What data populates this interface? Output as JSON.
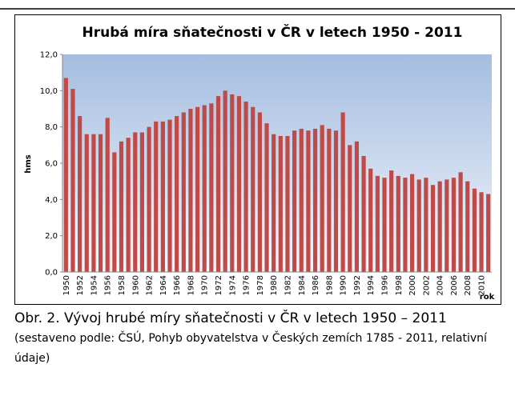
{
  "chart_data": {
    "type": "bar",
    "title": "Hrubá míra sňatečnosti v ČR v letech 1950 - 2011",
    "x_label": "rok",
    "y_label": "hms",
    "categories": [
      1950,
      null,
      1952,
      null,
      1954,
      null,
      1956,
      null,
      1958,
      null,
      1960,
      null,
      1962,
      null,
      1964,
      null,
      1966,
      null,
      1968,
      null,
      1970,
      null,
      1972,
      null,
      1974,
      null,
      1976,
      null,
      1978,
      null,
      1980,
      null,
      1982,
      null,
      1984,
      null,
      1986,
      null,
      1988,
      null,
      1990,
      null,
      1992,
      null,
      1994,
      null,
      1996,
      null,
      1998,
      null,
      2000,
      null,
      2002,
      null,
      2004,
      null,
      2006,
      null,
      2008,
      null,
      2010,
      null
    ],
    "values": [
      10.7,
      10.1,
      8.6,
      7.6,
      7.6,
      7.6,
      8.5,
      6.6,
      7.2,
      7.4,
      7.7,
      7.7,
      8.0,
      8.3,
      8.3,
      8.4,
      8.6,
      8.8,
      9.0,
      9.1,
      9.2,
      9.3,
      9.7,
      10.0,
      9.8,
      9.7,
      9.4,
      9.1,
      8.8,
      8.2,
      7.6,
      7.5,
      7.5,
      7.8,
      7.9,
      7.8,
      7.9,
      8.1,
      7.9,
      7.8,
      8.8,
      7.0,
      7.2,
      6.4,
      5.7,
      5.3,
      5.2,
      5.6,
      5.3,
      5.2,
      5.4,
      5.1,
      5.2,
      4.8,
      5.0,
      5.1,
      5.2,
      5.5,
      5.0,
      4.6,
      4.4,
      4.3
    ],
    "color": "#be4b48",
    "ylim": [
      0,
      12
    ],
    "yticks": [
      {
        "value": 0,
        "label": "0,0"
      },
      {
        "value": 2,
        "label": "2,0"
      },
      {
        "value": 4,
        "label": "4,0"
      },
      {
        "value": 6,
        "label": "6,0"
      },
      {
        "value": 8,
        "label": "8,0"
      },
      {
        "value": 10,
        "label": "10,0"
      },
      {
        "value": 12,
        "label": "12,0"
      }
    ],
    "grid": false
  },
  "caption": {
    "main": "Obr. 2. Vývoj hrubé míry sňatečnosti v ČR v letech 1950 – 2011",
    "source": "(sestaveno podle: ČSÚ, Pohyb obyvatelstva v Českých zemích 1785 - 2011, relativní údaje)"
  }
}
